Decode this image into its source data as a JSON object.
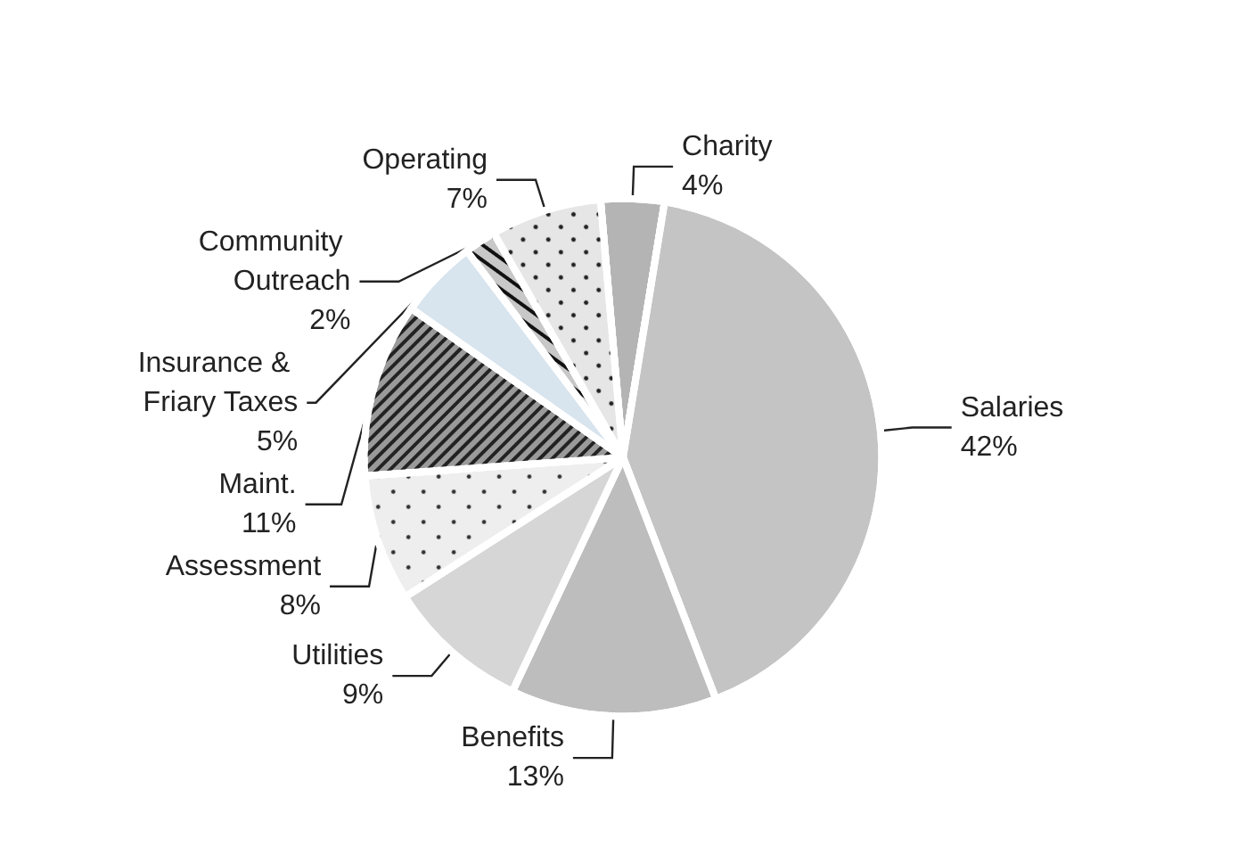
{
  "chart_data": {
    "type": "pie",
    "categories": [
      "Charity",
      "Salaries",
      "Benefits",
      "Utilities",
      "Assessment",
      "Maint.",
      "Insurance & Friary Taxes",
      "Community Outreach",
      "Operating"
    ],
    "values": [
      4,
      42,
      13,
      9,
      8,
      11,
      5,
      2,
      7
    ],
    "colors": [
      "#b4b4b4",
      "#c4c4c4",
      "#bdbdbd",
      "#d6d6d6",
      "#eeeeee",
      "#9a9a9a",
      "#d8e4ee",
      "#c8c8c8",
      "#e6e6e6"
    ],
    "value_labels": [
      "4%",
      "42%",
      "13%",
      "9%",
      "8%",
      "11%",
      "5%",
      "2%",
      "7%"
    ],
    "legend": false
  }
}
